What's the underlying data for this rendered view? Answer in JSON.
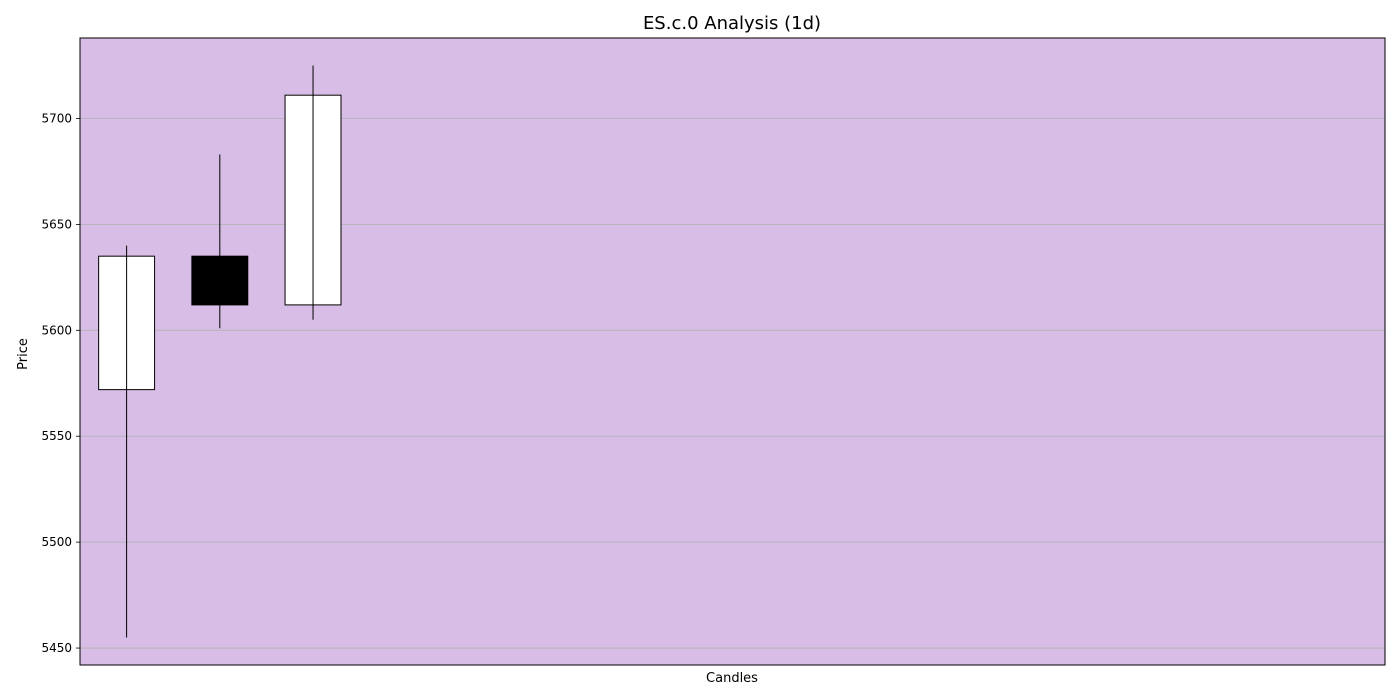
{
  "chart_data": {
    "type": "candlestick",
    "title": "ES.c.0 Analysis (1d)",
    "xlabel": "Candles",
    "ylabel": "Price",
    "ylim": [
      5442,
      5738
    ],
    "yticks": [
      5450,
      5500,
      5550,
      5600,
      5650,
      5700
    ],
    "grid": "horizontal",
    "background_color": "#d8bee6",
    "up_color": "#ffffff",
    "down_color": "#000000",
    "candle_slots": 14,
    "candles": [
      {
        "open": 5572,
        "high": 5640,
        "low": 5455,
        "close": 5635
      },
      {
        "open": 5635,
        "high": 5683,
        "low": 5601,
        "close": 5612
      },
      {
        "open": 5612,
        "high": 5725,
        "low": 5605,
        "close": 5711
      }
    ]
  }
}
